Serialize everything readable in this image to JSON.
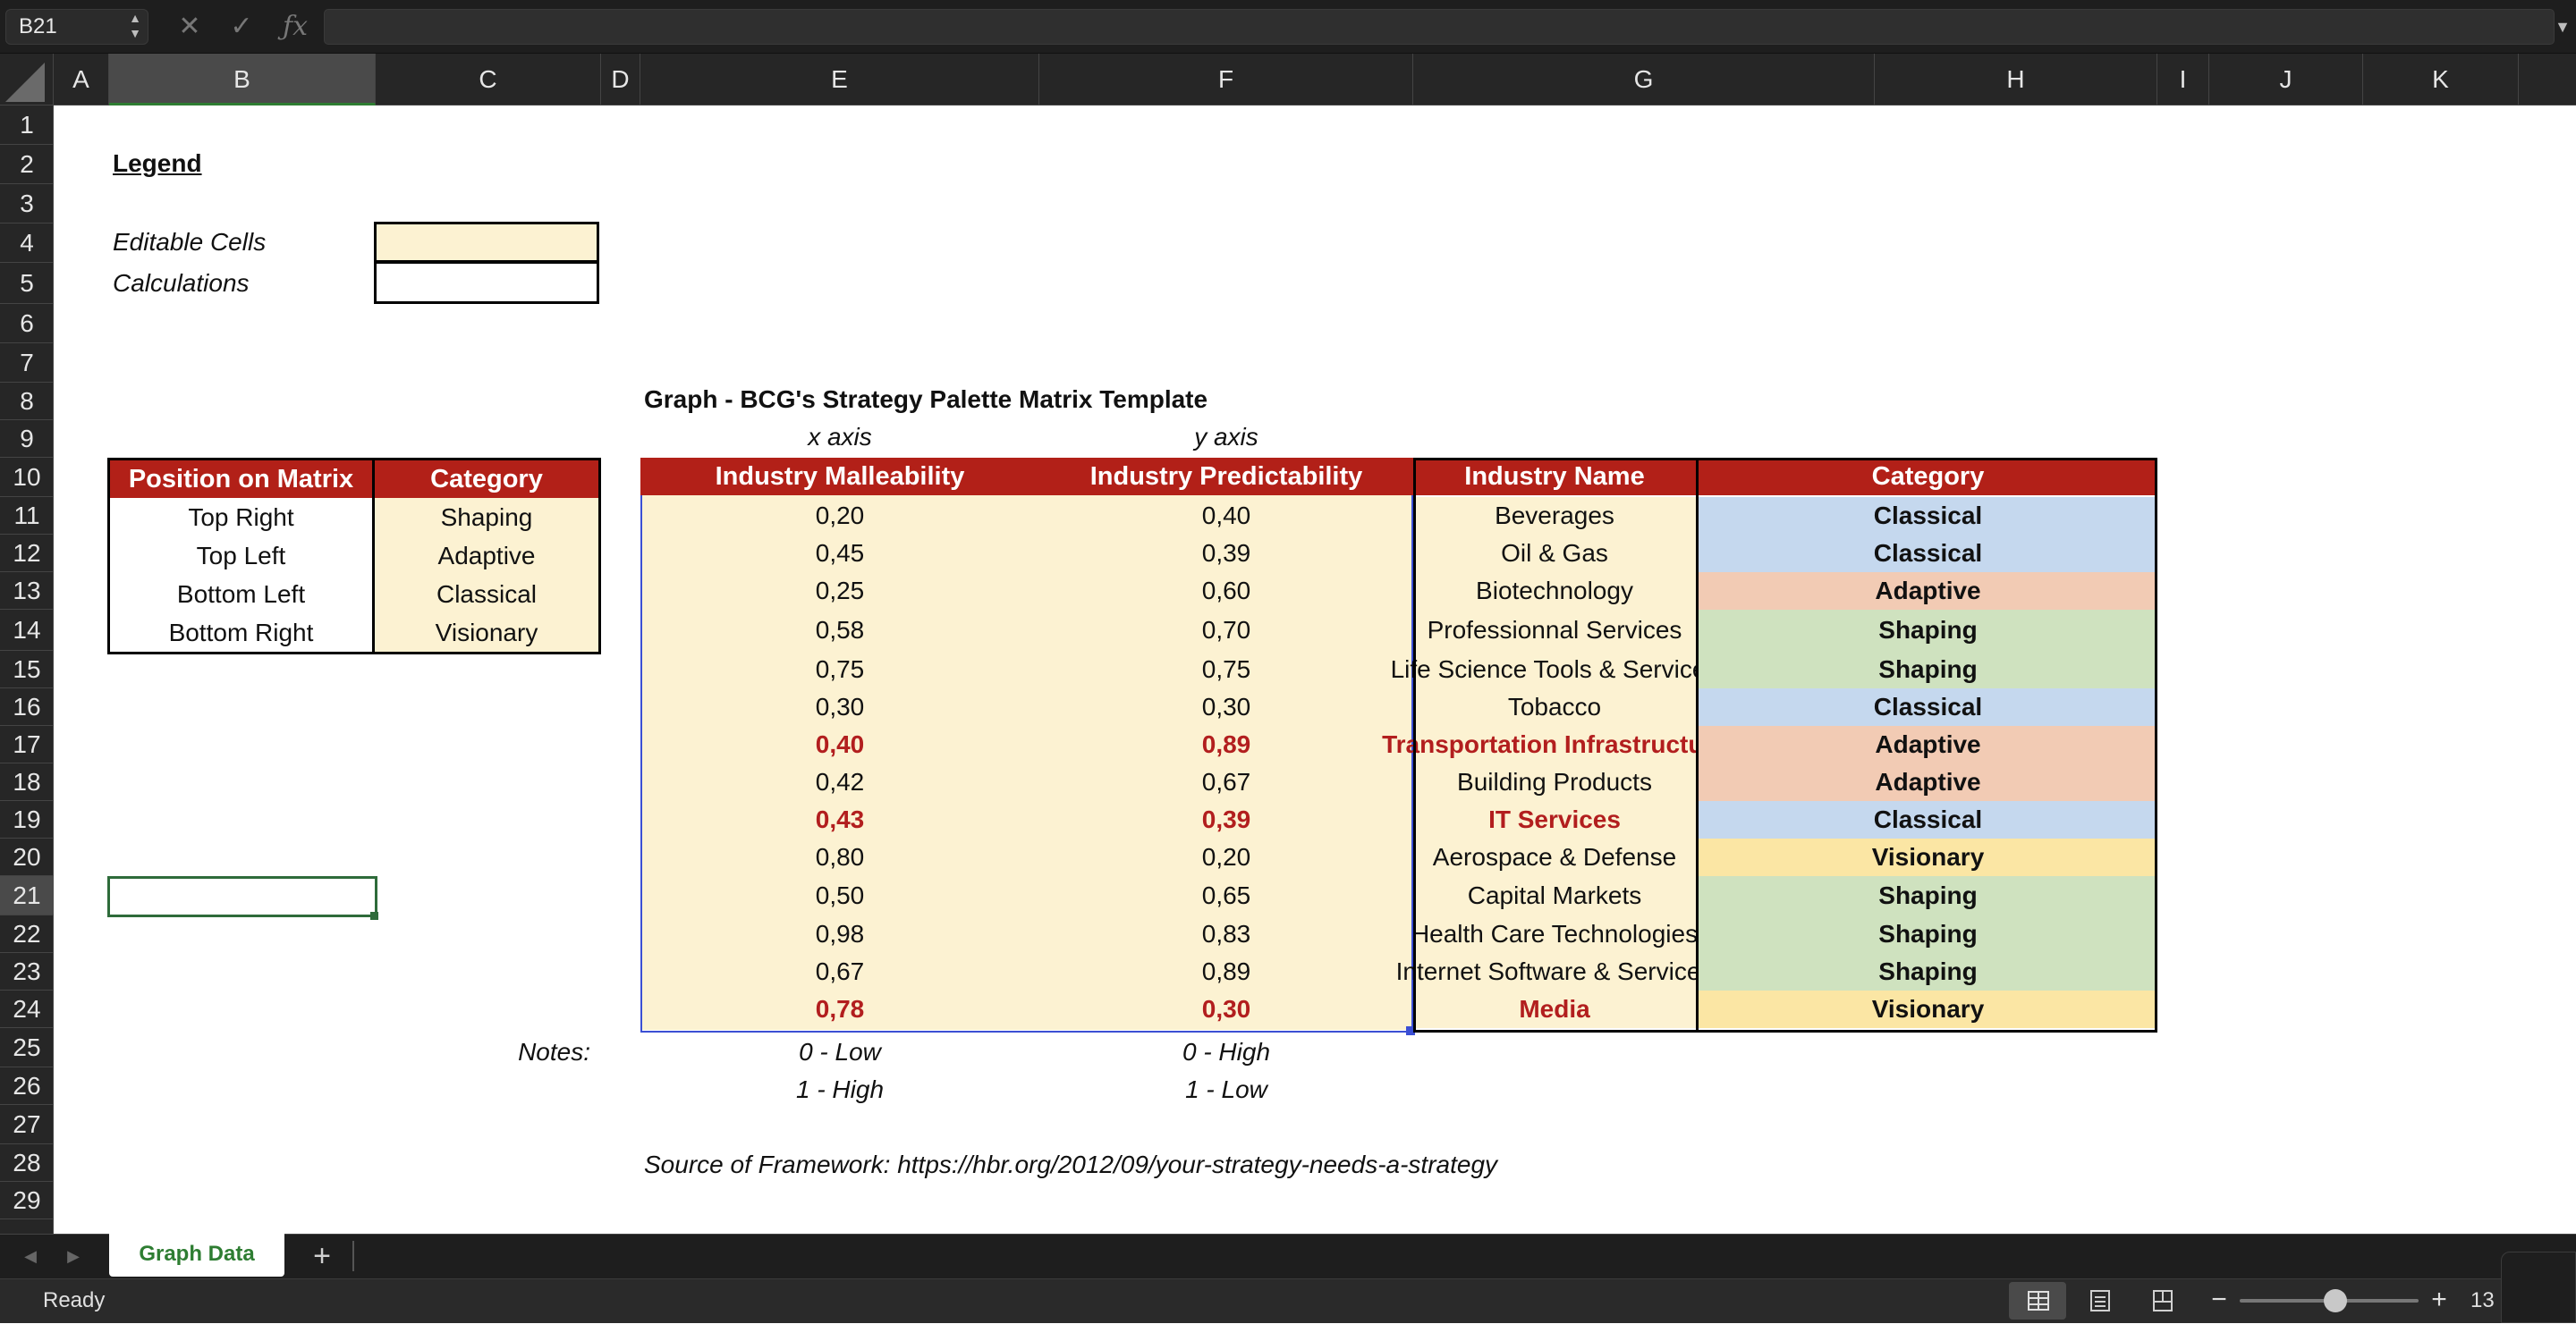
{
  "formula_bar": {
    "name_box": "B21",
    "stepper_icon": "up-down-stepper-icon",
    "cancel_icon": "cancel-x-icon",
    "confirm_icon": "checkmark-icon",
    "function_icon": "fx-icon",
    "formula_value": ""
  },
  "columns": [
    "A",
    "B",
    "C",
    "D",
    "E",
    "F",
    "G",
    "H",
    "I",
    "J",
    "K"
  ],
  "rows": [
    "1",
    "2",
    "3",
    "4",
    "5",
    "6",
    "7",
    "8",
    "9",
    "10",
    "11",
    "12",
    "13",
    "14",
    "15",
    "16",
    "17",
    "18",
    "19",
    "20",
    "21",
    "22",
    "23",
    "24",
    "25",
    "26",
    "27",
    "28",
    "29"
  ],
  "selected_cell": "B21",
  "legend": {
    "title": "Legend",
    "editable_label": "Editable Cells",
    "calc_label": "Calculations"
  },
  "graph_title": "Graph - BCG's Strategy Palette Matrix Template",
  "x_axis_label": "x axis",
  "y_axis_label": "y axis",
  "position_table": {
    "headers": [
      "Position on Matrix",
      "Category"
    ],
    "rows": [
      [
        "Top Right",
        "Shaping"
      ],
      [
        "Top Left",
        "Adaptive"
      ],
      [
        "Bottom Left",
        "Classical"
      ],
      [
        "Bottom Right",
        "Visionary"
      ]
    ]
  },
  "data_table": {
    "headers": [
      "Industry Malleability",
      "Industry Predictability",
      "Industry Name",
      "Category"
    ],
    "rows": [
      {
        "x": "0,20",
        "y": "0,40",
        "name": "Beverages",
        "category": "Classical",
        "highlight": false
      },
      {
        "x": "0,45",
        "y": "0,39",
        "name": "Oil & Gas",
        "category": "Classical",
        "highlight": false
      },
      {
        "x": "0,25",
        "y": "0,60",
        "name": "Biotechnology",
        "category": "Adaptive",
        "highlight": false
      },
      {
        "x": "0,58",
        "y": "0,70",
        "name": "Professionnal Services",
        "category": "Shaping",
        "highlight": false
      },
      {
        "x": "0,75",
        "y": "0,75",
        "name": "Life Science Tools & Services",
        "category": "Shaping",
        "highlight": false
      },
      {
        "x": "0,30",
        "y": "0,30",
        "name": "Tobacco",
        "category": "Classical",
        "highlight": false
      },
      {
        "x": "0,40",
        "y": "0,89",
        "name": "Transportation Infrastructure",
        "category": "Adaptive",
        "highlight": true
      },
      {
        "x": "0,42",
        "y": "0,67",
        "name": "Building Products",
        "category": "Adaptive",
        "highlight": false
      },
      {
        "x": "0,43",
        "y": "0,39",
        "name": "IT Services",
        "category": "Classical",
        "highlight": true
      },
      {
        "x": "0,80",
        "y": "0,20",
        "name": "Aerospace & Defense",
        "category": "Visionary",
        "highlight": false
      },
      {
        "x": "0,50",
        "y": "0,65",
        "name": "Capital Markets",
        "category": "Shaping",
        "highlight": false
      },
      {
        "x": "0,98",
        "y": "0,83",
        "name": "Health Care Technologies",
        "category": "Shaping",
        "highlight": false
      },
      {
        "x": "0,67",
        "y": "0,89",
        "name": "Internet Software & Services",
        "category": "Shaping",
        "highlight": false
      },
      {
        "x": "0,78",
        "y": "0,30",
        "name": "Media",
        "category": "Visionary",
        "highlight": true
      }
    ]
  },
  "category_colors": {
    "Classical": "#c5d8ee",
    "Adaptive": "#f2cbb4",
    "Shaping": "#cfe2bf",
    "Visionary": "#fbe6a4"
  },
  "notes": {
    "label": "Notes:",
    "x_low": "0 - Low",
    "x_high": "1 - High",
    "y_high": "0 - High",
    "y_low": "1 - Low"
  },
  "source": "Source of Framework: https://hbr.org/2012/09/your-strategy-needs-a-strategy",
  "sheet_tabs": [
    {
      "label": "Graph Data",
      "active": true
    }
  ],
  "add_sheet_label": "+",
  "status": {
    "text": "Ready",
    "zoom": "13"
  }
}
